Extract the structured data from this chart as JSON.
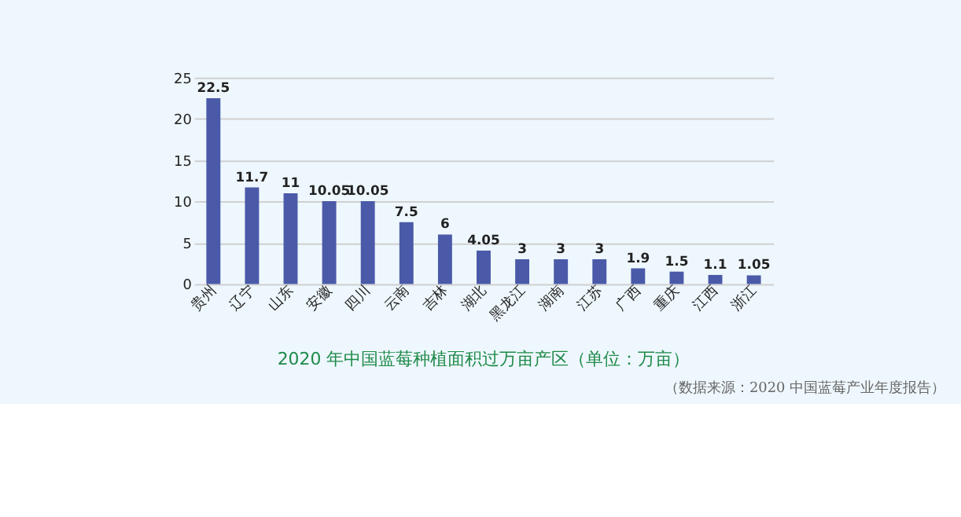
{
  "chart_data": {
    "type": "bar",
    "title": "2020 年中国蓝莓种植面积过万亩产区（单位：万亩）",
    "annotations": [
      "（数据来源：2020 中国蓝莓产业年度报告）"
    ],
    "categories": [
      "贵州",
      "辽宁",
      "山东",
      "安徽",
      "四川",
      "云南",
      "吉林",
      "湖北",
      "黑龙江",
      "湖南",
      "江苏",
      "广西",
      "重庆",
      "江西",
      "浙江"
    ],
    "values": [
      22.5,
      11.7,
      11,
      10.05,
      10.05,
      7.5,
      6,
      4.05,
      3,
      3,
      3,
      1.9,
      1.5,
      1.1,
      1.05
    ],
    "color": "#4a5aa8",
    "ylim": [
      0,
      25
    ],
    "yticks": [
      0,
      5,
      10,
      15,
      20,
      25
    ],
    "grid": "y",
    "data_labels": true
  }
}
